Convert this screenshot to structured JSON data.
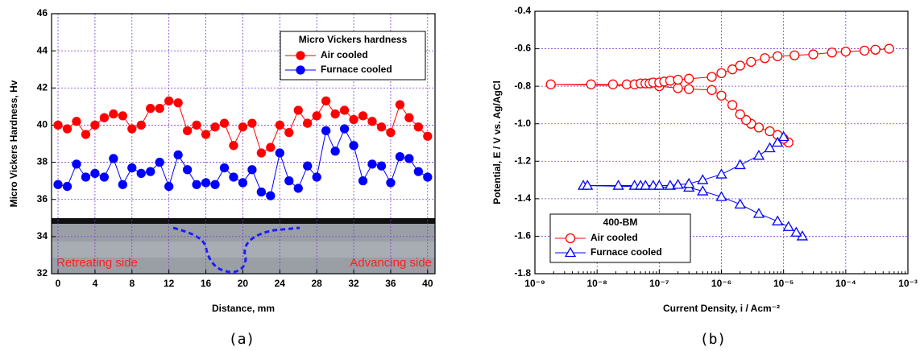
{
  "chart_data": [
    {
      "type": "line",
      "xlabel": "Distance, mm",
      "ylabel": "Micro Vickers Hardness, Hv",
      "caption": "(a)",
      "legend_title": "Micro Vickers hardness",
      "legend": "upper right",
      "grid": true,
      "annotations": [
        "Retreating side",
        "Advancing side"
      ],
      "x": [
        0,
        1,
        2,
        3,
        4,
        5,
        6,
        7,
        8,
        9,
        10,
        11,
        12,
        13,
        14,
        15,
        16,
        17,
        18,
        19,
        20,
        21,
        22,
        23,
        24,
        25,
        26,
        27,
        28,
        29,
        30,
        31,
        32,
        33,
        34,
        35,
        36,
        37,
        38,
        39,
        40
      ],
      "series": [
        {
          "name": "Air cooled",
          "color": "#ff0000",
          "marker": "circle",
          "filled": true,
          "values": [
            40.0,
            39.8,
            40.2,
            39.5,
            40.0,
            40.4,
            40.6,
            40.5,
            39.8,
            40.0,
            40.9,
            40.9,
            41.3,
            41.2,
            39.7,
            40.0,
            39.5,
            39.9,
            40.1,
            38.9,
            39.9,
            40.1,
            38.5,
            38.8,
            40.0,
            39.6,
            40.8,
            40.1,
            40.5,
            41.3,
            40.6,
            40.8,
            40.3,
            40.5,
            40.2,
            39.9,
            39.6,
            41.1,
            40.4,
            39.9,
            39.4
          ]
        },
        {
          "name": "Furnace cooled",
          "color": "#0000ff",
          "marker": "circle",
          "filled": true,
          "values": [
            36.8,
            36.7,
            37.9,
            37.2,
            37.4,
            37.2,
            38.2,
            36.8,
            37.7,
            37.4,
            37.5,
            38.0,
            36.7,
            38.4,
            37.6,
            36.8,
            36.9,
            36.8,
            37.7,
            37.2,
            36.9,
            37.6,
            36.4,
            36.2,
            38.5,
            37.0,
            36.6,
            37.8,
            37.2,
            39.7,
            38.6,
            39.8,
            38.9,
            37.0,
            37.9,
            37.8,
            36.9,
            38.3,
            38.2,
            37.5,
            37.2
          ]
        }
      ],
      "xlim": [
        -0.7,
        40.8
      ],
      "xticks": [
        0,
        4,
        8,
        12,
        16,
        20,
        24,
        28,
        32,
        36,
        40
      ],
      "ylim": [
        32,
        46
      ],
      "yticks": [
        32,
        34,
        36,
        38,
        40,
        42,
        44,
        46
      ]
    },
    {
      "type": "line",
      "xlabel": "Current Density, i / Acm⁻²",
      "ylabel": "Potential, E / V vs. Ag/AgCl",
      "caption": "(b)",
      "legend_title": "400-BM",
      "legend": "lower left",
      "grid": true,
      "xscale": "log",
      "series": [
        {
          "name": "Air cooled",
          "color": "#ff0000",
          "marker": "circle",
          "filled": false,
          "x": [
            1.2e-05,
            1e-05,
            8e-06,
            6e-06,
            4e-06,
            3e-06,
            2.5e-06,
            2e-06,
            1.5e-06,
            1e-06,
            7e-07,
            3e-07,
            2e-07,
            1e-07,
            1.8e-09,
            8e-09,
            1.8e-08,
            3e-08,
            4e-08,
            5e-08,
            6e-08,
            7e-08,
            8e-08,
            1e-07,
            1.2e-07,
            1.5e-07,
            2e-07,
            3e-07,
            7e-07,
            1e-06,
            1.5e-06,
            2e-06,
            3e-06,
            5e-06,
            8e-06,
            1.5e-05,
            3e-05,
            6e-05,
            0.0001,
            0.0002,
            0.0003,
            0.0005
          ],
          "values": [
            -1.1,
            -1.08,
            -1.06,
            -1.04,
            -1.02,
            -1.0,
            -0.98,
            -0.95,
            -0.9,
            -0.85,
            -0.82,
            -0.815,
            -0.81,
            -0.8,
            -0.79,
            -0.79,
            -0.79,
            -0.79,
            -0.79,
            -0.785,
            -0.785,
            -0.785,
            -0.78,
            -0.78,
            -0.775,
            -0.77,
            -0.765,
            -0.76,
            -0.75,
            -0.73,
            -0.71,
            -0.69,
            -0.67,
            -0.65,
            -0.64,
            -0.635,
            -0.63,
            -0.62,
            -0.615,
            -0.61,
            -0.605,
            -0.6
          ]
        },
        {
          "name": "Furnace cooled",
          "color": "#0000ff",
          "marker": "triangle",
          "filled": false,
          "x": [
            2e-05,
            1.6e-05,
            1.2e-05,
            8e-06,
            4e-06,
            2e-06,
            1e-06,
            5e-07,
            3e-07,
            6e-09,
            7e-09,
            2.2e-08,
            4e-08,
            5e-08,
            6e-08,
            8e-08,
            1e-07,
            1.5e-07,
            2e-07,
            3e-07,
            5e-07,
            1e-06,
            2e-06,
            4e-06,
            6e-06,
            8e-06,
            1e-05
          ],
          "values": [
            -1.6,
            -1.58,
            -1.55,
            -1.52,
            -1.48,
            -1.43,
            -1.39,
            -1.36,
            -1.34,
            -1.33,
            -1.33,
            -1.33,
            -1.33,
            -1.33,
            -1.33,
            -1.33,
            -1.33,
            -1.33,
            -1.325,
            -1.32,
            -1.3,
            -1.27,
            -1.22,
            -1.17,
            -1.13,
            -1.1,
            -1.07
          ]
        }
      ],
      "xlim": [
        1e-09,
        0.001
      ],
      "xticks": [
        {
          "value": 1e-09,
          "label": "10⁻⁹"
        },
        {
          "value": 1e-08,
          "label": "10⁻⁸"
        },
        {
          "value": 1e-07,
          "label": "10⁻⁷"
        },
        {
          "value": 1e-06,
          "label": "10⁻⁶"
        },
        {
          "value": 1e-05,
          "label": "10⁻⁵"
        },
        {
          "value": 0.0001,
          "label": "10⁻⁴"
        },
        {
          "value": 0.001,
          "label": "10⁻³"
        }
      ],
      "ylim": [
        -1.8,
        -0.4
      ],
      "yticks": [
        -1.8,
        -1.6,
        -1.4,
        -1.2,
        {
          "value": -1,
          "label": "-1.0"
        },
        -0.8,
        -0.6,
        -0.4
      ]
    }
  ]
}
